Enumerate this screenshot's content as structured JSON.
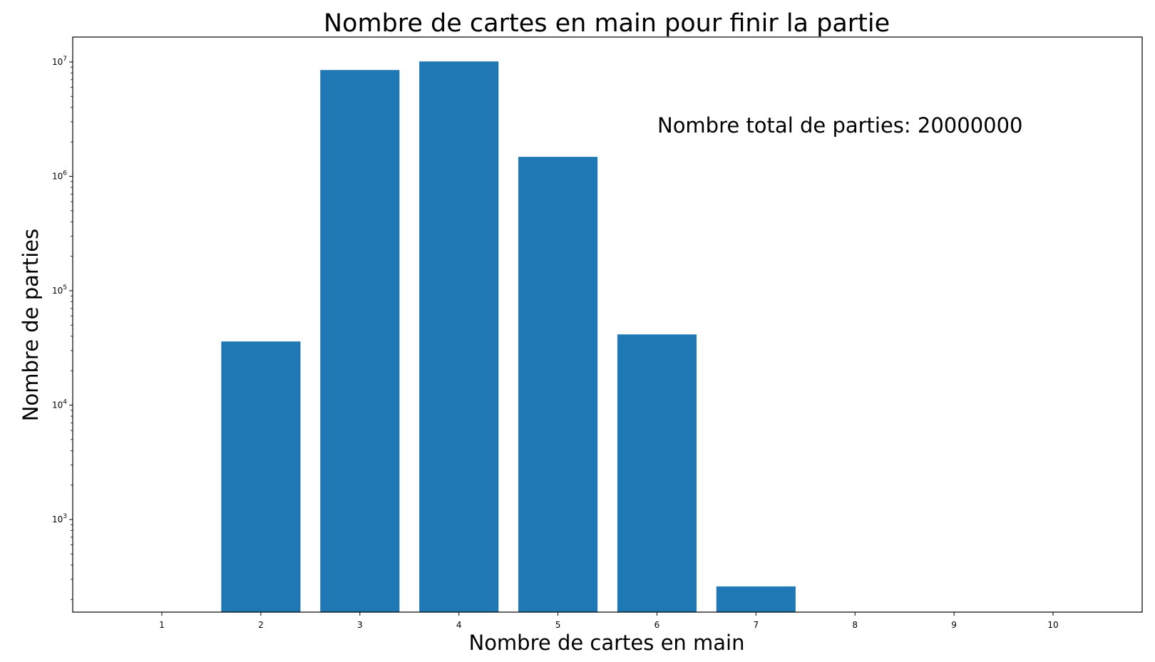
{
  "chart_data": {
    "type": "bar",
    "title": "Nombre de cartes en main pour finir la partie",
    "xlabel": "Nombre de cartes en main",
    "ylabel": "Nombre de parties",
    "annotation": "Nombre total de parties: 20000000",
    "y_scale": "log",
    "ylim": [
      155,
      16500000
    ],
    "xlim": [
      0.1,
      10.9
    ],
    "grid": false,
    "legend": "none",
    "bar_color": "#1f77b4",
    "categories": [
      1,
      2,
      3,
      4,
      5,
      6,
      7,
      8,
      9,
      10
    ],
    "values": [
      0,
      36000,
      8500000,
      10100000,
      1480000,
      41500,
      260,
      0,
      0,
      0
    ],
    "x_ticks": [
      "1",
      "2",
      "3",
      "4",
      "5",
      "6",
      "7",
      "8",
      "9",
      "10"
    ],
    "y_major_ticks": [
      {
        "value": 1000,
        "base": "10",
        "exp": "3"
      },
      {
        "value": 10000,
        "base": "10",
        "exp": "4"
      },
      {
        "value": 100000,
        "base": "10",
        "exp": "5"
      },
      {
        "value": 1000000,
        "base": "10",
        "exp": "6"
      },
      {
        "value": 10000000,
        "base": "10",
        "exp": "7"
      }
    ]
  }
}
